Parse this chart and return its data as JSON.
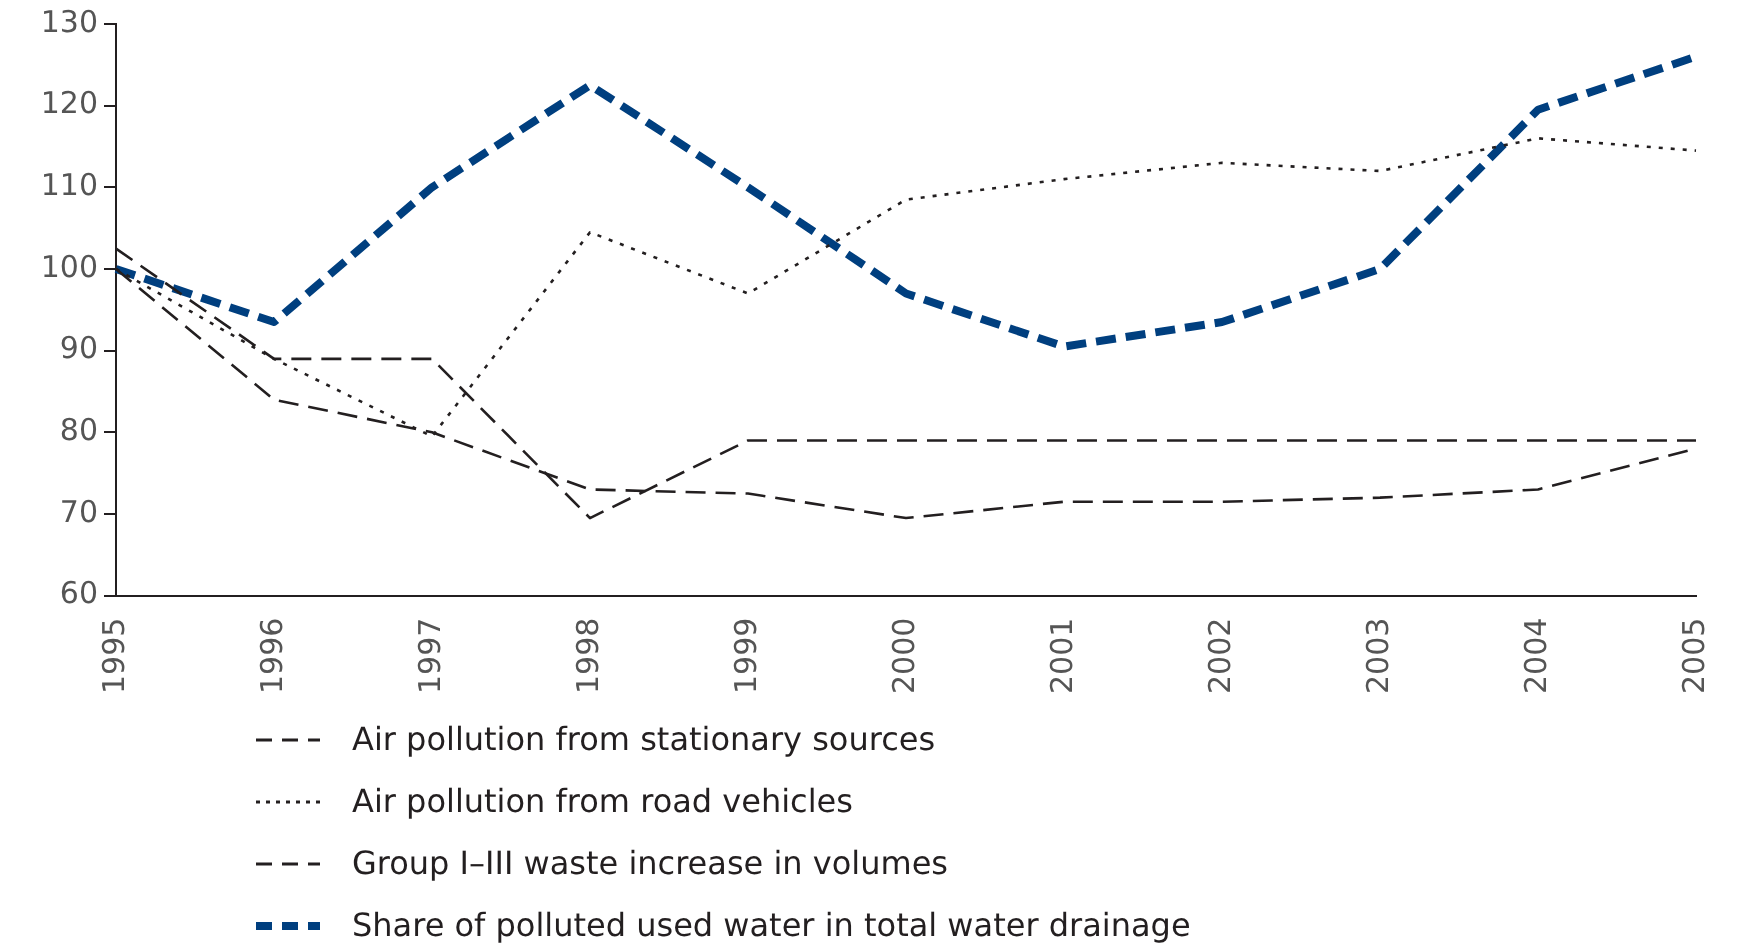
{
  "chart_data": {
    "type": "line",
    "categories": [
      "1995",
      "1996",
      "1997",
      "1998",
      "1999",
      "2000",
      "2001",
      "2002",
      "2003",
      "2004",
      "2005"
    ],
    "ylim": [
      60,
      130
    ],
    "yticks": [
      60,
      70,
      80,
      90,
      100,
      110,
      120,
      130
    ],
    "grid": false,
    "legend": "bottom",
    "marker": "none",
    "series": [
      {
        "name": "Air pollution from stationary sources",
        "color": "#231f20",
        "line_style": "dashed",
        "values": [
          100,
          84,
          80,
          73,
          72.5,
          69.5,
          71.5,
          71.5,
          72,
          73,
          78
        ]
      },
      {
        "name": "Air pollution from road vehicles",
        "color": "#231f20",
        "line_style": "dotted",
        "values": [
          100,
          89,
          79.5,
          104.5,
          97,
          108.5,
          111,
          113,
          112,
          116,
          114.5
        ]
      },
      {
        "name": "Group I–III waste increase in volumes",
        "color": "#231f20",
        "line_style": "dashed",
        "values": [
          102.5,
          89,
          89,
          69.5,
          79,
          79,
          79,
          79,
          79,
          79,
          79
        ]
      },
      {
        "name": "Share of polluted used water in total water drainage",
        "color": "#003f7f",
        "line_style": "dashed",
        "values": [
          100,
          93.5,
          110,
          122.5,
          110,
          97,
          90.5,
          93.5,
          100,
          119.5,
          126
        ]
      }
    ]
  }
}
